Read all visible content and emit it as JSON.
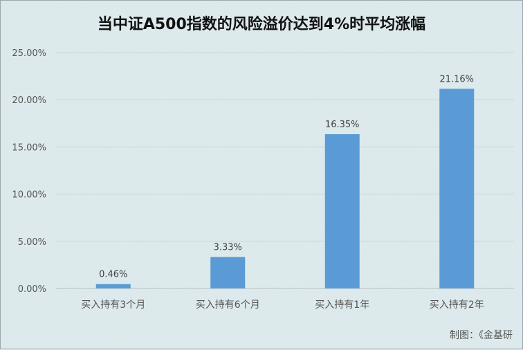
{
  "chart_data": {
    "type": "bar",
    "title": "当中证A500指数的风险溢价达到4%时平均涨幅",
    "categories": [
      "买入持有3个月",
      "买入持有6个月",
      "买入持有1年",
      "买入持有2年"
    ],
    "values": [
      0.46,
      3.33,
      16.35,
      21.16
    ],
    "value_labels": [
      "0.46%",
      "3.33%",
      "16.35%",
      "21.16%"
    ],
    "yticks": [
      "0.00%",
      "5.00%",
      "10.00%",
      "15.00%",
      "20.00%",
      "25.00%"
    ],
    "ytick_values": [
      0,
      5,
      10,
      15,
      20,
      25
    ],
    "ylim": [
      0,
      25
    ],
    "xlabel": "",
    "ylabel": "",
    "grid": true,
    "legend": "none",
    "bar_color": "#5b9bd5",
    "grid_color": "#c9d3d6"
  },
  "caption": "制图：《金基研"
}
